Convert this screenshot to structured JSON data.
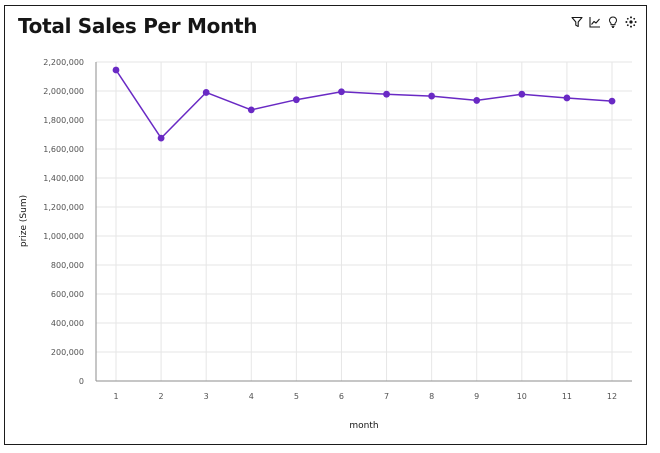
{
  "chart_data": {
    "type": "line",
    "title": "Total Sales Per Month",
    "xlabel": "month",
    "ylabel": "prize (Sum)",
    "categories": [
      "1",
      "2",
      "3",
      "4",
      "5",
      "6",
      "7",
      "8",
      "9",
      "10",
      "11",
      "12"
    ],
    "series": [
      {
        "values": [
          2145000,
          1675000,
          1990000,
          1870000,
          1940000,
          1995000,
          1978000,
          1965000,
          1935000,
          1978000,
          1952000,
          1930000
        ]
      }
    ],
    "ylim": [
      0,
      2200000
    ],
    "yticks": [
      0,
      200000,
      400000,
      600000,
      800000,
      1000000,
      1200000,
      1400000,
      1600000,
      1800000,
      2000000,
      2200000
    ],
    "ytick_labels": [
      "0",
      "200,000",
      "400,000",
      "600,000",
      "800,000",
      "1,000,000",
      "1,200,000",
      "1,400,000",
      "1,600,000",
      "1,800,000",
      "2,000,000",
      "2,200,000"
    ],
    "grid": true,
    "line_color": "#6929c4"
  },
  "toolbar": {
    "icons": [
      "filter-icon",
      "line-chart-icon",
      "lightbulb-icon",
      "settings-icon"
    ]
  }
}
